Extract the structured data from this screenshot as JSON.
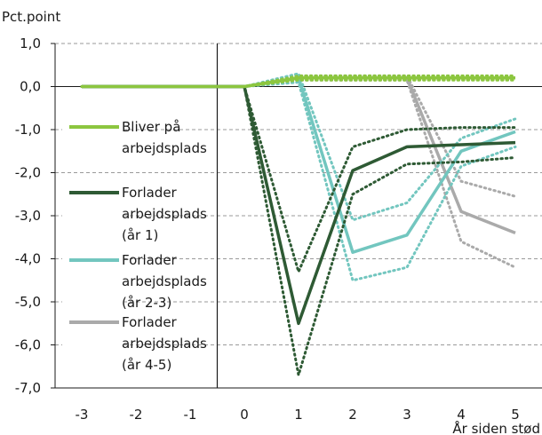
{
  "chart_data": {
    "type": "line",
    "ylabel": "Pct.point",
    "xlabel": "År siden stød",
    "x": [
      -3,
      -2,
      -1,
      0,
      1,
      2,
      3,
      4,
      5
    ],
    "x_tick_labels": [
      "-3",
      "-2",
      "-1",
      "0",
      "1",
      "2",
      "3",
      "4",
      "5"
    ],
    "ylim": [
      -7,
      1
    ],
    "y_ticks": [
      1,
      0,
      -1,
      -2,
      -3,
      -4,
      -5,
      -6,
      -7
    ],
    "y_tick_labels": [
      "1,0",
      "0,0",
      "-1,0",
      "-2,0",
      "-3,0",
      "-4,0",
      "-5,0",
      "-6,0",
      "-7,0"
    ],
    "grid": "horizontal dashed",
    "legend_position": "left, inside plot",
    "series": [
      {
        "name": "Bliver på arbejdsplads",
        "legend_lines": [
          "Bliver på",
          "arbejdsplads"
        ],
        "color": "#8cc63f",
        "values": [
          0,
          0,
          0,
          0,
          0.2,
          0.2,
          0.2,
          0.2,
          0.2
        ],
        "ci_lower": [
          0,
          0,
          0,
          0,
          0.15,
          0.15,
          0.15,
          0.15,
          0.15
        ],
        "ci_upper": [
          0,
          0,
          0,
          0,
          0.25,
          0.25,
          0.25,
          0.25,
          0.25
        ]
      },
      {
        "name": "Forlader arbejdsplads (år 1)",
        "legend_lines": [
          "Forlader",
          "arbejdsplads",
          "(år 1)"
        ],
        "color": "#2e5a34",
        "values": [
          0,
          0,
          0,
          0,
          -5.5,
          -1.95,
          -1.4,
          -1.35,
          -1.3
        ],
        "ci_lower": [
          0,
          0,
          0,
          0,
          -6.7,
          -2.5,
          -1.8,
          -1.75,
          -1.65
        ],
        "ci_upper": [
          0,
          0,
          0,
          0,
          -4.3,
          -1.4,
          -1.0,
          -0.95,
          -0.95
        ]
      },
      {
        "name": "Forlader arbejdsplads (år 2-3)",
        "legend_lines": [
          "Forlader",
          "arbejdsplads",
          "(år 2-3)"
        ],
        "color": "#72c6bf",
        "values": [
          0,
          0,
          0,
          0,
          0.2,
          -3.85,
          -3.45,
          -1.5,
          -1.05
        ],
        "ci_lower": [
          0,
          0,
          0,
          0,
          0.1,
          -4.5,
          -4.2,
          -1.85,
          -1.4
        ],
        "ci_upper": [
          0,
          0,
          0,
          0,
          0.3,
          -3.1,
          -2.7,
          -1.2,
          -0.75
        ]
      },
      {
        "name": "Forlader arbejdsplads (år 4-5)",
        "legend_lines": [
          "Forlader",
          "arbejdsplads",
          "(år 4-5)"
        ],
        "color": "#aaaaaa",
        "values": [
          0,
          0,
          0,
          0,
          0.2,
          0.2,
          0.2,
          -2.9,
          -3.4
        ],
        "ci_lower": [
          0,
          0,
          0,
          0,
          0.15,
          0.15,
          0.15,
          -3.6,
          -4.2
        ],
        "ci_upper": [
          0,
          0,
          0,
          0,
          0.25,
          0.25,
          0.25,
          -2.2,
          -2.55
        ]
      }
    ]
  }
}
